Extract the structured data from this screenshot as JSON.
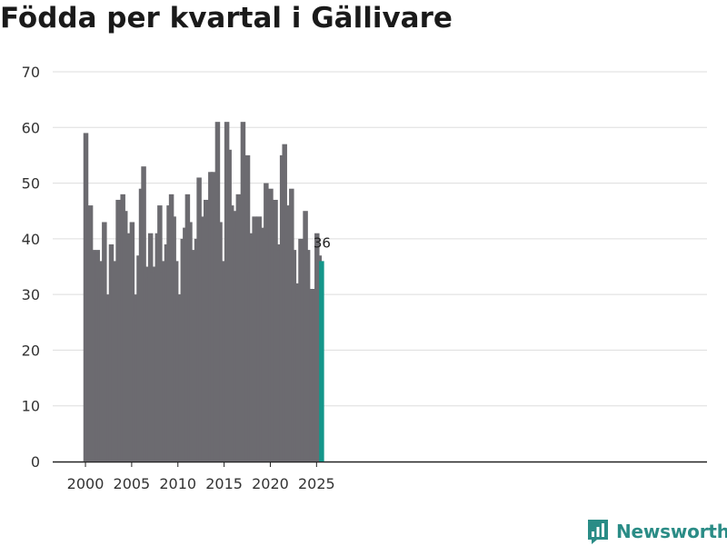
{
  "title": "Födda per kvartal i Gällivare",
  "brand": {
    "name": "Newsworthy",
    "color": "#2a8c86"
  },
  "colors": {
    "bar": "#6c6b70",
    "highlight": "#14968a",
    "grid": "#dddddd",
    "axis": "#222222",
    "text": "#333333"
  },
  "chart_data": {
    "type": "bar",
    "title": "Födda per kvartal i Gällivare",
    "xlabel": "",
    "ylabel": "",
    "ylim": [
      0,
      70
    ],
    "y_ticks": [
      0,
      10,
      20,
      30,
      40,
      50,
      60,
      70
    ],
    "x_ticks": [
      2000,
      2005,
      2010,
      2015,
      2020,
      2025
    ],
    "start": "2000 Q1",
    "highlight_label": "36",
    "series": [
      {
        "name": "Födda",
        "values": [
          59,
          42,
          46,
          38,
          36,
          38,
          33,
          36,
          43,
          29,
          30,
          39,
          36,
          35,
          47,
          29,
          48,
          45,
          33,
          41,
          43,
          26,
          30,
          37,
          49,
          53,
          35,
          33,
          41,
          34,
          35,
          41,
          46,
          34,
          36,
          39,
          46,
          48,
          44,
          36,
          30,
          30,
          40,
          42,
          48,
          43,
          38,
          35,
          40,
          51,
          37,
          44,
          47,
          44,
          52,
          52,
          45,
          61,
          43,
          30,
          36,
          61,
          56,
          46,
          42,
          45,
          48,
          46,
          61,
          54,
          55,
          34,
          41,
          44,
          42,
          44,
          42,
          30,
          50,
          42,
          49,
          45,
          47,
          39,
          38,
          55,
          57,
          46,
          35,
          49,
          38,
          24,
          32,
          40,
          38,
          45,
          38,
          25,
          31,
          31,
          41,
          37,
          36
        ]
      }
    ]
  }
}
